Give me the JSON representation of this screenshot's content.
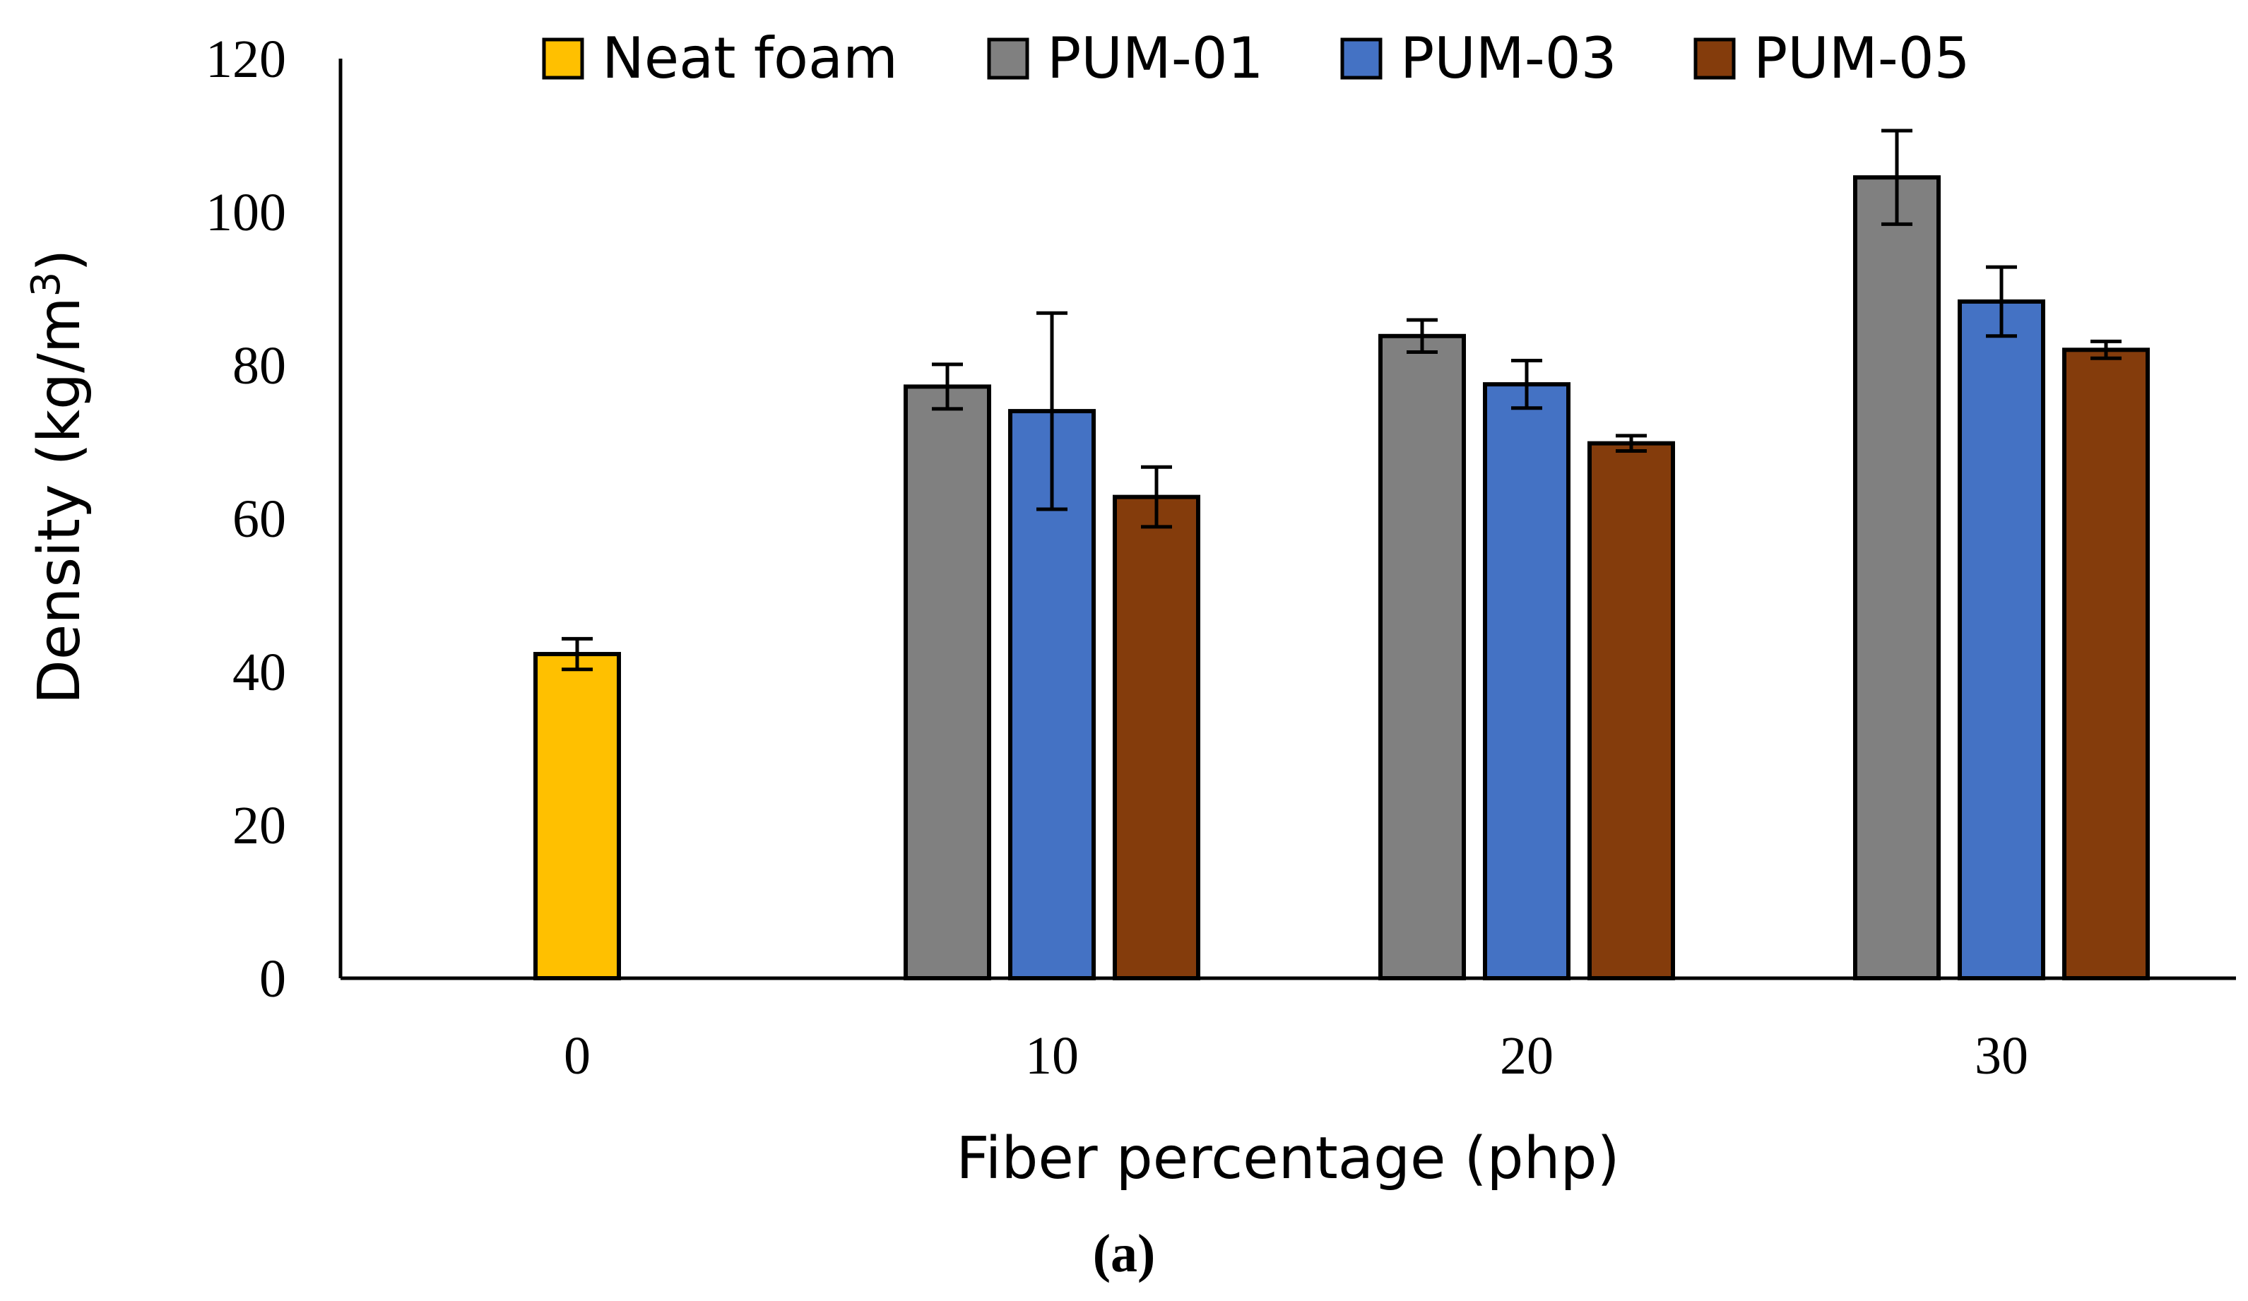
{
  "chart_data": {
    "type": "bar",
    "categories": [
      "0",
      "10",
      "20",
      "30"
    ],
    "series": [
      {
        "name": "Neat foam",
        "color": "#FFC000",
        "values": [
          42.3,
          null,
          null,
          null
        ],
        "errors": [
          2.0,
          null,
          null,
          null
        ]
      },
      {
        "name": "PUM-01",
        "color": "#808080",
        "values": [
          null,
          77.2,
          83.8,
          104.5
        ],
        "errors": [
          null,
          2.9,
          2.1,
          6.1
        ]
      },
      {
        "name": "PUM-03",
        "color": "#4472C4",
        "values": [
          null,
          74.0,
          77.5,
          88.3
        ],
        "errors": [
          null,
          12.8,
          3.1,
          4.5
        ]
      },
      {
        "name": "PUM-05",
        "color": "#843C0C",
        "values": [
          null,
          62.8,
          69.8,
          82.0
        ],
        "errors": [
          null,
          3.9,
          1.0,
          1.1
        ]
      }
    ],
    "title": "",
    "xlabel": "Fiber percentage (php)",
    "ylabel": "Density (kg/m",
    "ylabel_sup": "3",
    "ylabel_close": ")",
    "ylim": [
      0,
      120
    ],
    "yticks": [
      0,
      20,
      40,
      60,
      80,
      100,
      120
    ],
    "grid": false,
    "legend_position": "top",
    "caption": "(a)"
  }
}
